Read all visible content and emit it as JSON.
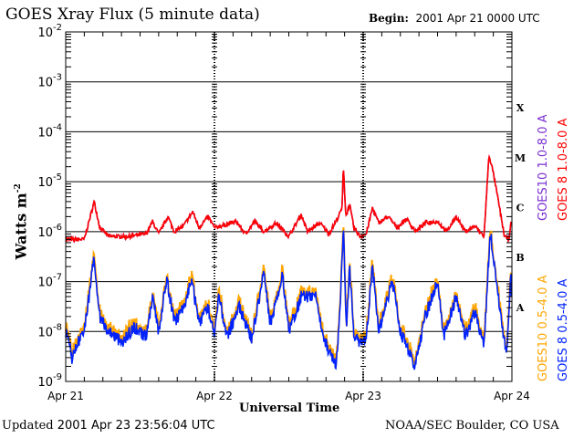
{
  "header": {
    "title": "GOES Xray Flux (5 minute data)",
    "begin_label": "Begin:",
    "begin_value": "2001 Apr 21 0000 UTC"
  },
  "footer": {
    "updated_label": "Updated",
    "updated_value": "2001 Apr 23 23:56:04 UTC",
    "source": "NOAA/SEC Boulder, CO USA"
  },
  "chart_data": {
    "type": "line",
    "title": "GOES Xray Flux (5 minute data)",
    "xlabel": "Universal Time",
    "ylabel": "Watts m",
    "ylabel_sup": "-2",
    "xlim_hours": [
      0,
      72
    ],
    "ylim": [
      1e-09,
      0.01
    ],
    "yscale": "log",
    "x_ticks": [
      {
        "hour": 0,
        "label": "Apr 21"
      },
      {
        "hour": 24,
        "label": "Apr 22"
      },
      {
        "hour": 48,
        "label": "Apr 23"
      },
      {
        "hour": 72,
        "label": "Apr 24"
      }
    ],
    "y_ticks": [
      {
        "exp": -2,
        "base": "10",
        "sup": "-2"
      },
      {
        "exp": -3,
        "base": "10",
        "sup": "-3"
      },
      {
        "exp": -4,
        "base": "10",
        "sup": "-4"
      },
      {
        "exp": -5,
        "base": "10",
        "sup": "-5"
      },
      {
        "exp": -6,
        "base": "10",
        "sup": "-6"
      },
      {
        "exp": -7,
        "base": "10",
        "sup": "-7"
      },
      {
        "exp": -8,
        "base": "10",
        "sup": "-8"
      },
      {
        "exp": -9,
        "base": "10",
        "sup": "-9"
      }
    ],
    "flare_classes": [
      {
        "label": "X",
        "exp": -3.5
      },
      {
        "label": "M",
        "exp": -4.5
      },
      {
        "label": "C",
        "exp": -5.5
      },
      {
        "label": "B",
        "exp": -6.5
      },
      {
        "label": "A",
        "exp": -7.5
      }
    ],
    "series": [
      {
        "name": "GOES10 1.0-8.0 A",
        "color": "#7a2fd0",
        "offset": 0.0,
        "points": [
          [
            0,
            7e-07
          ],
          [
            3,
            7e-07
          ],
          [
            4.6,
            4e-06
          ],
          [
            5.5,
            1.2e-06
          ],
          [
            7,
            8e-07
          ],
          [
            10,
            8e-07
          ],
          [
            13,
            9e-07
          ],
          [
            14,
            1.6e-06
          ],
          [
            15,
            9e-07
          ],
          [
            16.5,
            2e-06
          ],
          [
            17.5,
            1e-06
          ],
          [
            19,
            1.3e-06
          ],
          [
            20.5,
            2.5e-06
          ],
          [
            21.5,
            1.2e-06
          ],
          [
            23,
            2e-06
          ],
          [
            24,
            1.2e-06
          ],
          [
            26,
            1.4e-06
          ],
          [
            27.5,
            1.6e-06
          ],
          [
            29,
            9e-07
          ],
          [
            30.5,
            1.6e-06
          ],
          [
            32,
            1e-06
          ],
          [
            34,
            1.5e-06
          ],
          [
            36,
            8e-07
          ],
          [
            38,
            2.2e-06
          ],
          [
            39,
            1e-06
          ],
          [
            41,
            1.5e-06
          ],
          [
            42.5,
            9e-07
          ],
          [
            44,
            2e-06
          ],
          [
            44.6,
            3e-06
          ],
          [
            44.8,
            2.2e-05
          ],
          [
            45.2,
            2e-06
          ],
          [
            45.8,
            3.5e-06
          ],
          [
            46.5,
            1.2e-06
          ],
          [
            47.5,
            8e-07
          ],
          [
            48.5,
            9e-07
          ],
          [
            49.5,
            3e-06
          ],
          [
            50.5,
            1.5e-06
          ],
          [
            52,
            2e-06
          ],
          [
            53.5,
            1.2e-06
          ],
          [
            55,
            1.8e-06
          ],
          [
            56.5,
            1e-06
          ],
          [
            58,
            1.5e-06
          ],
          [
            60,
            1.6e-06
          ],
          [
            61.5,
            1e-06
          ],
          [
            63,
            2e-06
          ],
          [
            64.5,
            1e-06
          ],
          [
            66,
            1.3e-06
          ],
          [
            67.5,
            8e-07
          ],
          [
            68.3,
            3.5e-05
          ],
          [
            69,
            1.5e-05
          ],
          [
            70,
            3e-06
          ],
          [
            70.8,
            8e-07
          ],
          [
            71.5,
            7e-07
          ],
          [
            72,
            2e-06
          ]
        ]
      },
      {
        "name": "GOES 8 1.0-8.0 A",
        "color": "#ff0000",
        "offset": 0.0,
        "points": [
          [
            0,
            7e-07
          ],
          [
            3,
            7e-07
          ],
          [
            4.6,
            4e-06
          ],
          [
            5.5,
            1.2e-06
          ],
          [
            7,
            8e-07
          ],
          [
            10,
            8e-07
          ],
          [
            13,
            9e-07
          ],
          [
            14,
            1.6e-06
          ],
          [
            15,
            9e-07
          ],
          [
            16.5,
            2e-06
          ],
          [
            17.5,
            1e-06
          ],
          [
            19,
            1.3e-06
          ],
          [
            20.5,
            2.5e-06
          ],
          [
            21.5,
            1.2e-06
          ],
          [
            23,
            2e-06
          ],
          [
            24,
            1.2e-06
          ],
          [
            26,
            1.4e-06
          ],
          [
            27.5,
            1.6e-06
          ],
          [
            29,
            9e-07
          ],
          [
            30.5,
            1.6e-06
          ],
          [
            32,
            1e-06
          ],
          [
            34,
            1.5e-06
          ],
          [
            36,
            8e-07
          ],
          [
            38,
            2.2e-06
          ],
          [
            39,
            1e-06
          ],
          [
            41,
            1.5e-06
          ],
          [
            42.5,
            9e-07
          ],
          [
            44,
            2e-06
          ],
          [
            44.6,
            3e-06
          ],
          [
            44.8,
            2.2e-05
          ],
          [
            45.2,
            2e-06
          ],
          [
            45.8,
            3.5e-06
          ],
          [
            46.5,
            1.2e-06
          ],
          [
            47.5,
            8e-07
          ],
          [
            48.5,
            9e-07
          ],
          [
            49.5,
            3e-06
          ],
          [
            50.5,
            1.5e-06
          ],
          [
            52,
            2e-06
          ],
          [
            53.5,
            1.2e-06
          ],
          [
            55,
            1.8e-06
          ],
          [
            56.5,
            1e-06
          ],
          [
            58,
            1.5e-06
          ],
          [
            60,
            1.6e-06
          ],
          [
            61.5,
            1e-06
          ],
          [
            63,
            2e-06
          ],
          [
            64.5,
            1e-06
          ],
          [
            66,
            1.3e-06
          ],
          [
            67.5,
            8e-07
          ],
          [
            68.3,
            3.5e-05
          ],
          [
            69,
            1.5e-05
          ],
          [
            70,
            3e-06
          ],
          [
            70.8,
            8e-07
          ],
          [
            71.5,
            7e-07
          ],
          [
            72,
            2e-06
          ]
        ]
      },
      {
        "name": "GOES10 0.5-4.0 A",
        "color": "#ffa500",
        "offset": 0.15,
        "points": [
          [
            0,
            1e-08
          ],
          [
            1,
            3e-09
          ],
          [
            2,
            6e-09
          ],
          [
            3,
            1e-08
          ],
          [
            4.6,
            3e-07
          ],
          [
            5.5,
            2e-08
          ],
          [
            7,
            1e-08
          ],
          [
            9,
            6e-09
          ],
          [
            11,
            1.2e-08
          ],
          [
            13,
            8e-09
          ],
          [
            14,
            5e-08
          ],
          [
            15,
            1e-08
          ],
          [
            16.3,
            1.2e-07
          ],
          [
            17.5,
            1.5e-08
          ],
          [
            19,
            3e-08
          ],
          [
            20.3,
            1.1e-07
          ],
          [
            21.5,
            1.5e-08
          ],
          [
            23,
            3e-08
          ],
          [
            24,
            1e-08
          ],
          [
            24.7,
            5e-08
          ],
          [
            26,
            8e-09
          ],
          [
            28,
            3e-08
          ],
          [
            30,
            7e-09
          ],
          [
            32,
            1.5e-07
          ],
          [
            33,
            1.5e-08
          ],
          [
            35,
            1.3e-07
          ],
          [
            36,
            1e-08
          ],
          [
            38,
            5e-08
          ],
          [
            40.3,
            5e-08
          ],
          [
            41.5,
            8e-09
          ],
          [
            43.6,
            2e-09
          ],
          [
            44.3,
            3e-08
          ],
          [
            44.8,
            1.5e-06
          ],
          [
            45.3,
            1e-08
          ],
          [
            45.8,
            2e-07
          ],
          [
            46.5,
            8e-09
          ],
          [
            47.5,
            6e-09
          ],
          [
            48.5,
            8e-09
          ],
          [
            49.5,
            2e-07
          ],
          [
            50.5,
            1e-08
          ],
          [
            52.7,
            1e-07
          ],
          [
            54,
            1e-08
          ],
          [
            56.4,
            2e-09
          ],
          [
            58,
            2e-08
          ],
          [
            60,
            1e-07
          ],
          [
            61,
            8e-09
          ],
          [
            63,
            5e-08
          ],
          [
            64.5,
            8e-09
          ],
          [
            66,
            2.5e-08
          ],
          [
            67.5,
            5e-09
          ],
          [
            68.5,
            1e-06
          ],
          [
            69.5,
            1e-07
          ],
          [
            70.5,
            1e-08
          ],
          [
            71.2,
            4e-09
          ],
          [
            71.8,
            1.5e-07
          ],
          [
            72,
            2e-08
          ]
        ]
      },
      {
        "name": "GOES 8 0.5-4.0 A",
        "color": "#0022ff",
        "offset": 0.0,
        "points": [
          [
            0,
            1e-08
          ],
          [
            1,
            3e-09
          ],
          [
            2,
            6e-09
          ],
          [
            3,
            1e-08
          ],
          [
            4.6,
            3e-07
          ],
          [
            5.5,
            2e-08
          ],
          [
            7,
            1e-08
          ],
          [
            9,
            6e-09
          ],
          [
            11,
            1.2e-08
          ],
          [
            13,
            8e-09
          ],
          [
            14,
            5e-08
          ],
          [
            15,
            1e-08
          ],
          [
            16.3,
            1.2e-07
          ],
          [
            17.5,
            1.5e-08
          ],
          [
            19,
            3e-08
          ],
          [
            20.3,
            1.1e-07
          ],
          [
            21.5,
            1.5e-08
          ],
          [
            23,
            3e-08
          ],
          [
            24,
            1e-08
          ],
          [
            24.7,
            5e-08
          ],
          [
            26,
            8e-09
          ],
          [
            28,
            3e-08
          ],
          [
            30,
            7e-09
          ],
          [
            32,
            1.5e-07
          ],
          [
            33,
            1.5e-08
          ],
          [
            35,
            1.3e-07
          ],
          [
            36,
            1e-08
          ],
          [
            38,
            5e-08
          ],
          [
            40.3,
            5e-08
          ],
          [
            41.5,
            8e-09
          ],
          [
            43.6,
            2e-09
          ],
          [
            44.3,
            3e-08
          ],
          [
            44.8,
            1.5e-06
          ],
          [
            45.3,
            1e-08
          ],
          [
            45.8,
            2e-07
          ],
          [
            46.5,
            8e-09
          ],
          [
            47.5,
            6e-09
          ],
          [
            48.5,
            8e-09
          ],
          [
            49.5,
            2e-07
          ],
          [
            50.5,
            1e-08
          ],
          [
            52.7,
            1e-07
          ],
          [
            54,
            1e-08
          ],
          [
            56.4,
            2e-09
          ],
          [
            58,
            2e-08
          ],
          [
            60,
            1e-07
          ],
          [
            61,
            8e-09
          ],
          [
            63,
            5e-08
          ],
          [
            64.5,
            8e-09
          ],
          [
            66,
            2.5e-08
          ],
          [
            67.5,
            5e-09
          ],
          [
            68.5,
            1e-06
          ],
          [
            69.5,
            1e-07
          ],
          [
            70.5,
            1e-08
          ],
          [
            71.2,
            4e-09
          ],
          [
            71.8,
            1.5e-07
          ],
          [
            72,
            2e-08
          ]
        ]
      }
    ],
    "legend_placement": "right"
  }
}
